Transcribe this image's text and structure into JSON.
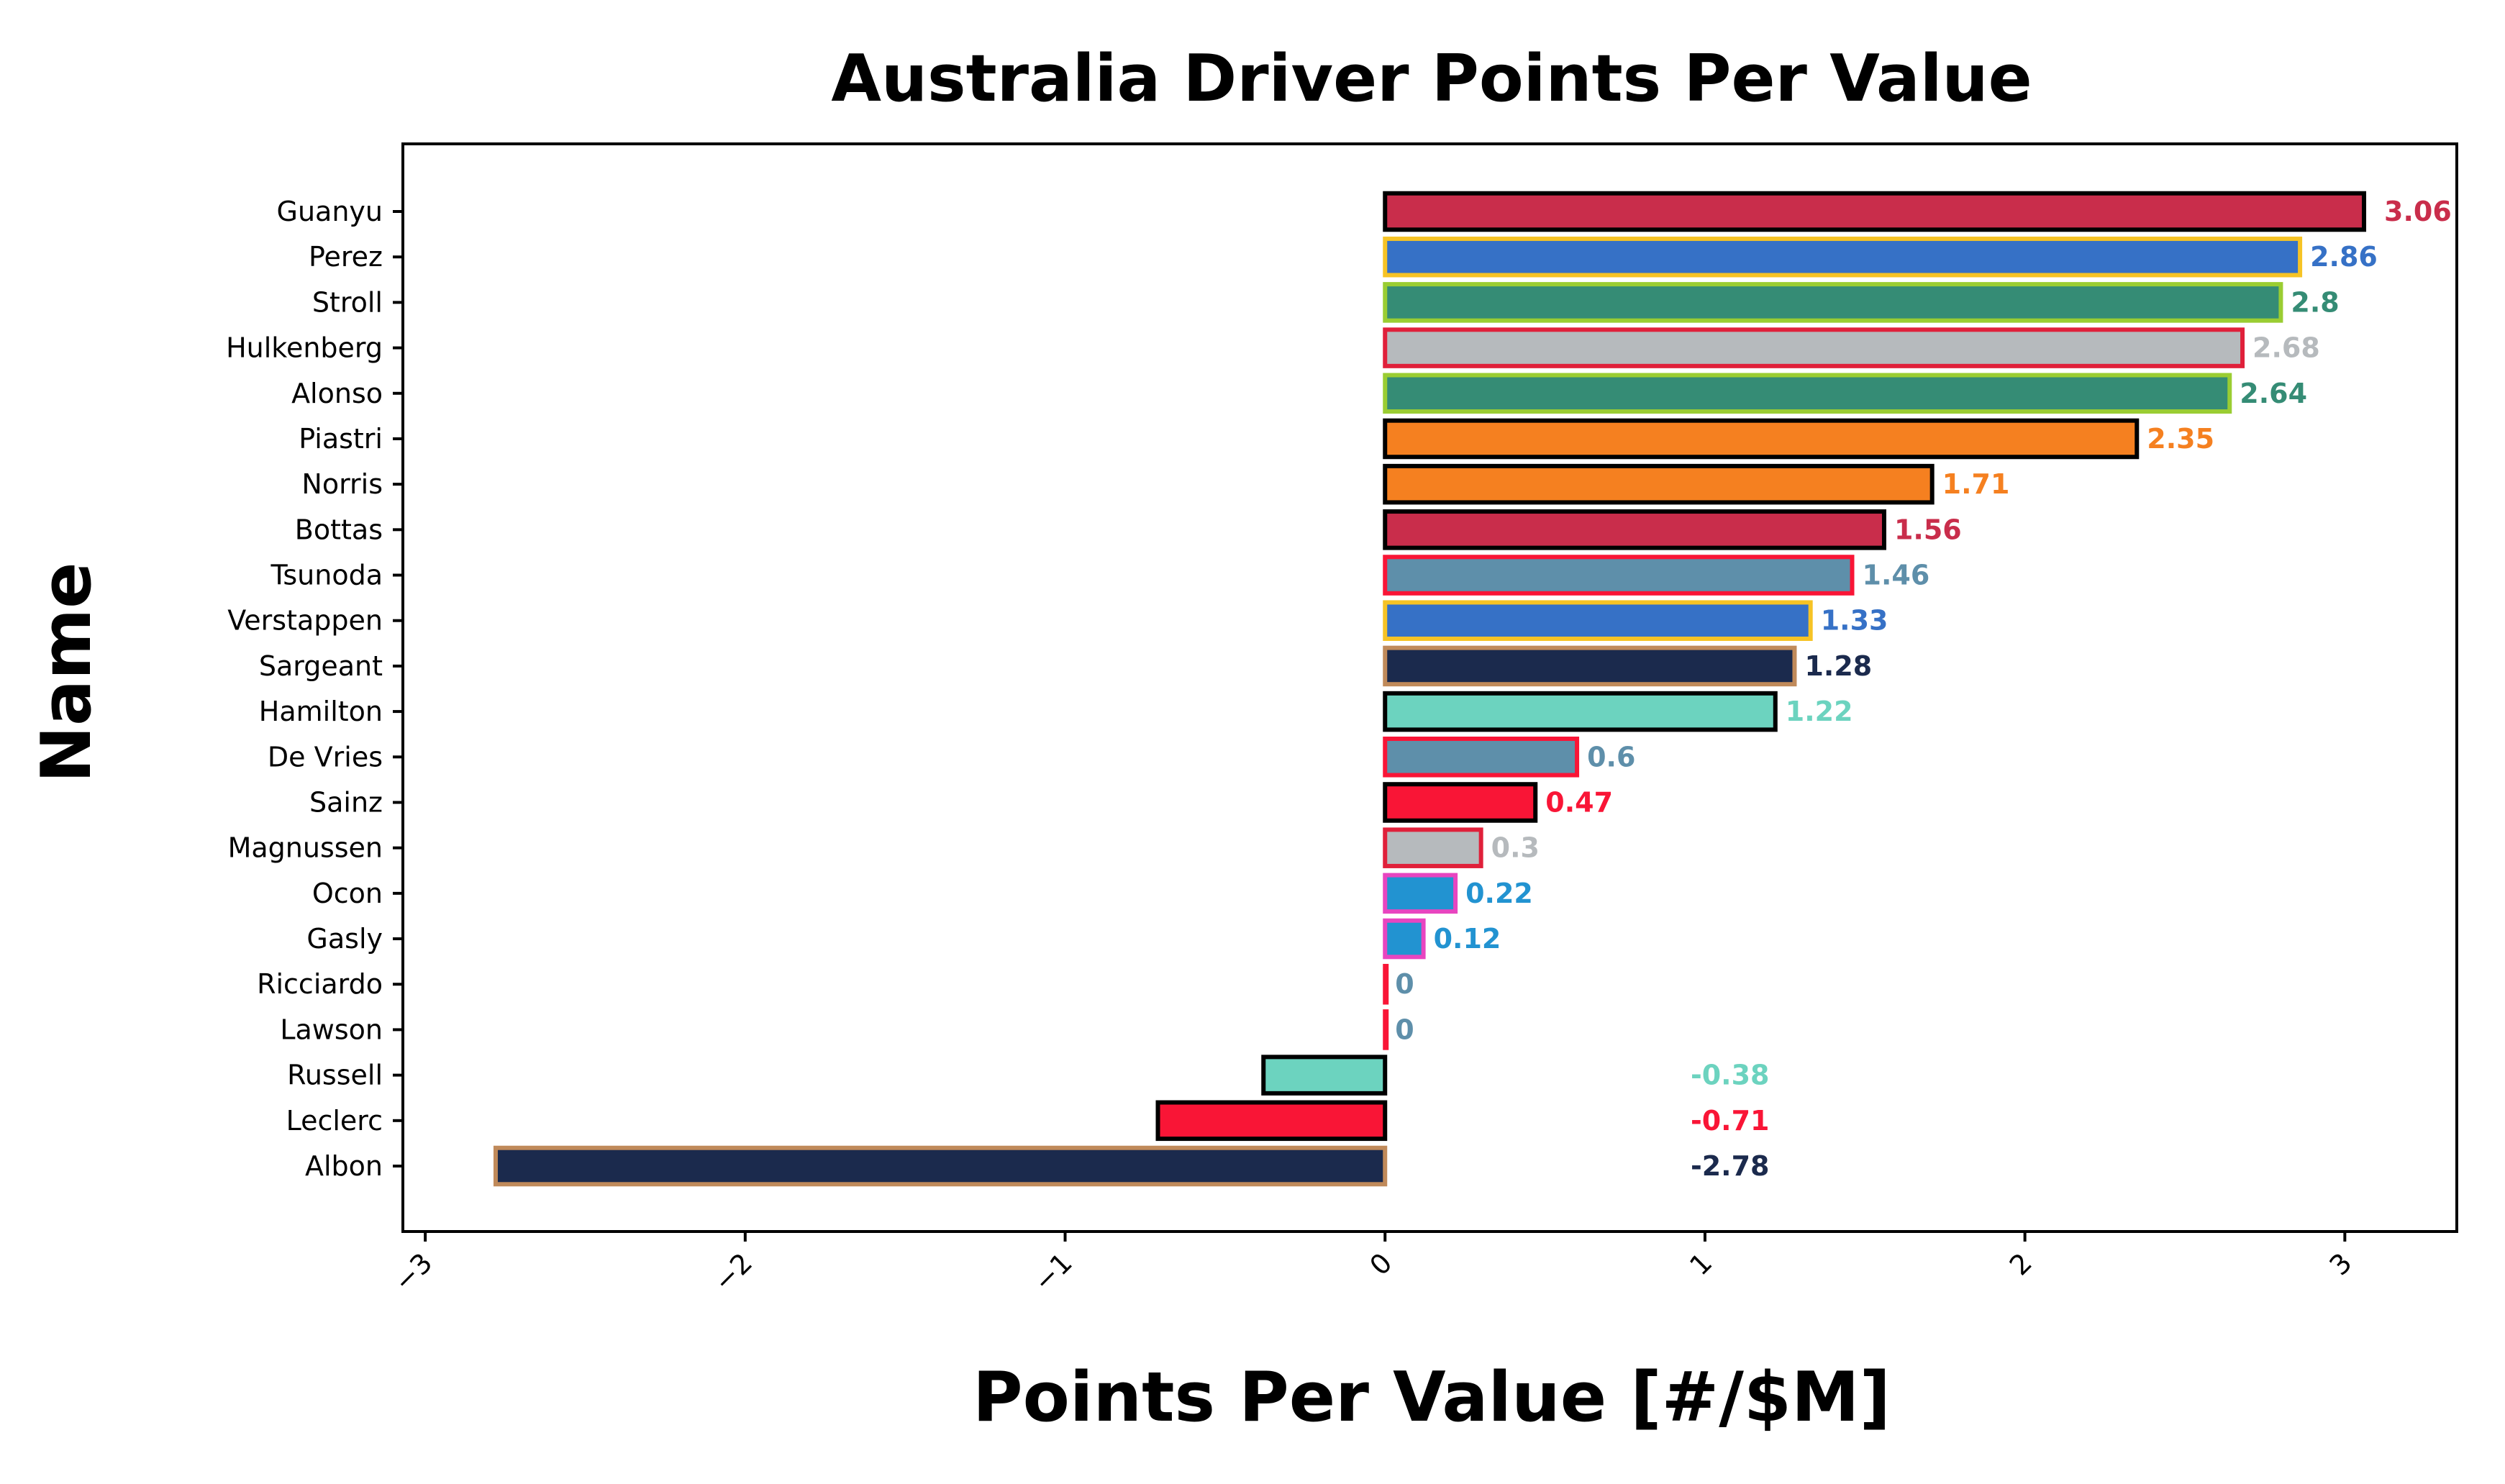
{
  "chart_data": {
    "type": "bar",
    "orientation": "horizontal",
    "title": "Australia Driver Points Per Value",
    "xlabel": "Points Per Value [#/$M]",
    "ylabel": "Name",
    "xlim": [
      -3.07,
      3.35
    ],
    "xticks": [
      "-3",
      "-2",
      "-1",
      "0",
      "1",
      "2",
      "3"
    ],
    "xtick_values": [
      -3,
      -2,
      -1,
      0,
      1,
      2,
      3
    ],
    "grid": false,
    "categories": [
      "Guanyu",
      "Perez",
      "Stroll",
      "Hulkenberg",
      "Alonso",
      "Piastri",
      "Norris",
      "Bottas",
      "Tsunoda",
      "Verstappen",
      "Sargeant",
      "Hamilton",
      "De Vries",
      "Sainz",
      "Magnussen",
      "Ocon",
      "Gasly",
      "Ricciardo",
      "Lawson",
      "Russell",
      "Leclerc",
      "Albon"
    ],
    "values": [
      3.06,
      2.86,
      2.8,
      2.68,
      2.64,
      2.35,
      1.71,
      1.56,
      1.46,
      1.33,
      1.28,
      1.22,
      0.6,
      0.47,
      0.3,
      0.22,
      0.12,
      0,
      0,
      -0.38,
      -0.71,
      -2.78
    ],
    "value_labels": [
      "3.06",
      "2.86",
      "2.8",
      "2.68",
      "2.64",
      "2.35",
      "1.71",
      "1.56",
      "1.46",
      "1.33",
      "1.28",
      "1.22",
      "0.6",
      "0.47",
      "0.3",
      "0.22",
      "0.12",
      "0",
      "0",
      "-0.38",
      "-0.71",
      "-2.78"
    ],
    "fill_colors": [
      "#C92D4B",
      "#3671C6",
      "#358C75",
      "#B6BABD",
      "#358C75",
      "#F58020",
      "#F58020",
      "#C92D4B",
      "#5E8FAA",
      "#3671C6",
      "#1B2A4D",
      "#6CD3BF",
      "#5E8FAA",
      "#F91536",
      "#B6BABD",
      "#2293D1",
      "#2293D1",
      "#5E8FAA",
      "#5E8FAA",
      "#6CD3BF",
      "#F91536",
      "#1B2A4D"
    ],
    "edge_colors": [
      "#000000",
      "#F6C325",
      "#9ACD32",
      "#E0203A",
      "#9ACD32",
      "#000000",
      "#000000",
      "#000000",
      "#F91536",
      "#F6C325",
      "#C08A5A",
      "#000000",
      "#F91536",
      "#000000",
      "#E0203A",
      "#E845C0",
      "#E845C0",
      "#F91536",
      "#F91536",
      "#000000",
      "#000000",
      "#C08A5A"
    ]
  }
}
